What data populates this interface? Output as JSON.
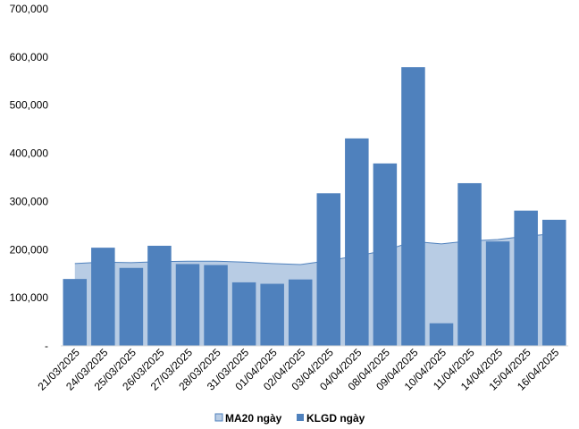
{
  "chart_data": {
    "type": "bar",
    "categories": [
      "21/03/2025",
      "24/03/2025",
      "25/03/2025",
      "26/03/2025",
      "27/03/2025",
      "28/03/2025",
      "31/03/2025",
      "01/04/2025",
      "02/04/2025",
      "03/04/2025",
      "04/04/2025",
      "08/04/2025",
      "09/04/2025",
      "10/04/2025",
      "11/04/2025",
      "14/04/2025",
      "15/04/2025",
      "16/04/2025"
    ],
    "series": [
      {
        "name": "MA20 ngày",
        "kind": "area",
        "color": "#b8cce4",
        "line_color": "#4f81bd",
        "values": [
          171000,
          174000,
          173000,
          175000,
          176000,
          176000,
          174000,
          171000,
          169000,
          177000,
          187000,
          198000,
          217000,
          212000,
          218000,
          221000,
          228000,
          233000
        ]
      },
      {
        "name": "KLGD ngày",
        "kind": "bar",
        "color": "#4f81bd",
        "values": [
          139000,
          204000,
          162000,
          208000,
          170000,
          168000,
          132000,
          129000,
          138000,
          317000,
          431000,
          379000,
          579000,
          47000,
          338000,
          217000,
          281000,
          262000
        ]
      }
    ],
    "ylim": [
      0,
      700000
    ],
    "yticks": [
      0,
      100000,
      200000,
      300000,
      400000,
      500000,
      600000,
      700000
    ],
    "ytick_labels": [
      "-",
      "100,000",
      "200,000",
      "300,000",
      "400,000",
      "500,000",
      "600,000",
      "700,000"
    ],
    "legend_position": "bottom-center",
    "grid": false,
    "title": "",
    "xlabel": "",
    "ylabel": ""
  }
}
